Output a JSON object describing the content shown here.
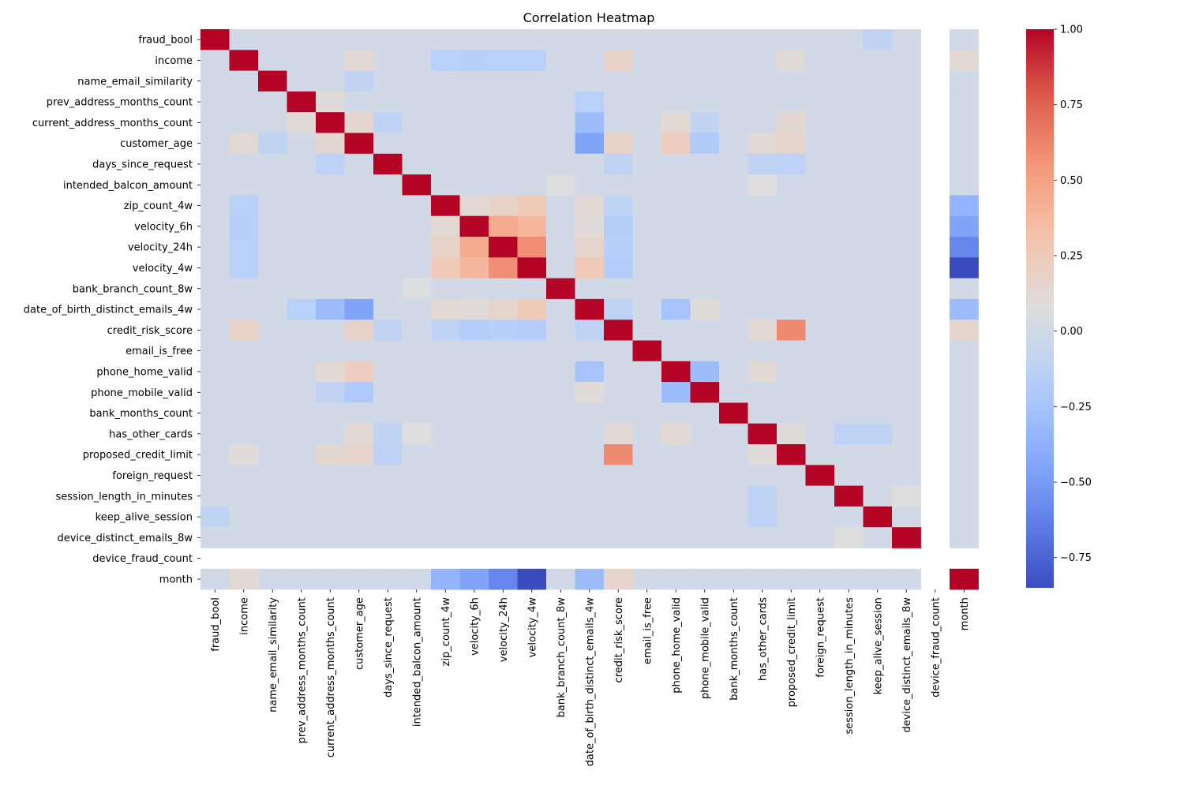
{
  "chart_data": {
    "type": "heatmap",
    "title": "Correlation Heatmap",
    "xlabel": "",
    "ylabel": "",
    "labels": [
      "fraud_bool",
      "income",
      "name_email_similarity",
      "prev_address_months_count",
      "current_address_months_count",
      "customer_age",
      "days_since_request",
      "intended_balcon_amount",
      "zip_count_4w",
      "velocity_6h",
      "velocity_24h",
      "velocity_4w",
      "bank_branch_count_8w",
      "date_of_birth_distinct_emails_4w",
      "credit_risk_score",
      "email_is_free",
      "phone_home_valid",
      "phone_mobile_valid",
      "bank_months_count",
      "has_other_cards",
      "proposed_credit_limit",
      "foreign_request",
      "session_length_in_minutes",
      "keep_alive_session",
      "device_distinct_emails_8w",
      "device_fraud_count",
      "month"
    ],
    "colormap": "coolwarm",
    "vmin": -0.85,
    "vmax": 1.0,
    "colorbar_ticks": [
      1.0,
      0.75,
      0.5,
      0.25,
      0.0,
      -0.25,
      -0.5,
      -0.75
    ],
    "colorbar_tick_labels": [
      "1.00",
      "0.75",
      "0.50",
      "0.25",
      "0.00",
      "−0.25",
      "−0.50",
      "−0.75"
    ],
    "masked_label": "device_fraud_count",
    "pairs": [
      [
        "income",
        "customer_age",
        0.12
      ],
      [
        "income",
        "credit_risk_score",
        0.18
      ],
      [
        "income",
        "proposed_credit_limit",
        0.1
      ],
      [
        "income",
        "zip_count_4w",
        -0.15
      ],
      [
        "income",
        "velocity_6h",
        -0.16
      ],
      [
        "income",
        "velocity_24h",
        -0.15
      ],
      [
        "income",
        "velocity_4w",
        -0.15
      ],
      [
        "income",
        "month",
        0.12
      ],
      [
        "name_email_similarity",
        "customer_age",
        -0.1
      ],
      [
        "prev_address_months_count",
        "current_address_months_count",
        0.1
      ],
      [
        "prev_address_months_count",
        "date_of_birth_distinct_emails_4w",
        -0.15
      ],
      [
        "current_address_months_count",
        "customer_age",
        0.14
      ],
      [
        "current_address_months_count",
        "date_of_birth_distinct_emails_4w",
        -0.3
      ],
      [
        "current_address_months_count",
        "phone_home_valid",
        0.12
      ],
      [
        "current_address_months_count",
        "proposed_credit_limit",
        0.13
      ],
      [
        "current_address_months_count",
        "phone_mobile_valid",
        -0.1
      ],
      [
        "customer_age",
        "date_of_birth_distinct_emails_4w",
        -0.45
      ],
      [
        "customer_age",
        "credit_risk_score",
        0.17
      ],
      [
        "customer_age",
        "phone_home_valid",
        0.22
      ],
      [
        "customer_age",
        "phone_mobile_valid",
        -0.2
      ],
      [
        "customer_age",
        "has_other_cards",
        0.12
      ],
      [
        "customer_age",
        "proposed_credit_limit",
        0.15
      ],
      [
        "days_since_request",
        "current_address_months_count",
        -0.12
      ],
      [
        "days_since_request",
        "credit_risk_score",
        -0.1
      ],
      [
        "days_since_request",
        "has_other_cards",
        -0.1
      ],
      [
        "days_since_request",
        "proposed_credit_limit",
        -0.12
      ],
      [
        "intended_balcon_amount",
        "bank_branch_count_8w",
        0.07
      ],
      [
        "intended_balcon_amount",
        "has_other_cards",
        0.08
      ],
      [
        "zip_count_4w",
        "velocity_6h",
        0.12
      ],
      [
        "zip_count_4w",
        "velocity_24h",
        0.18
      ],
      [
        "zip_count_4w",
        "velocity_4w",
        0.25
      ],
      [
        "zip_count_4w",
        "date_of_birth_distinct_emails_4w",
        0.12
      ],
      [
        "zip_count_4w",
        "credit_risk_score",
        -0.12
      ],
      [
        "zip_count_4w",
        "month",
        -0.35
      ],
      [
        "velocity_6h",
        "velocity_24h",
        0.45
      ],
      [
        "velocity_6h",
        "velocity_4w",
        0.38
      ],
      [
        "velocity_6h",
        "date_of_birth_distinct_emails_4w",
        0.1
      ],
      [
        "velocity_6h",
        "credit_risk_score",
        -0.17
      ],
      [
        "velocity_6h",
        "month",
        -0.45
      ],
      [
        "velocity_24h",
        "velocity_4w",
        0.58
      ],
      [
        "velocity_24h",
        "date_of_birth_distinct_emails_4w",
        0.15
      ],
      [
        "velocity_24h",
        "credit_risk_score",
        -0.16
      ],
      [
        "velocity_24h",
        "month",
        -0.6
      ],
      [
        "velocity_4w",
        "date_of_birth_distinct_emails_4w",
        0.25
      ],
      [
        "velocity_4w",
        "credit_risk_score",
        -0.18
      ],
      [
        "velocity_4w",
        "month",
        -0.85
      ],
      [
        "date_of_birth_distinct_emails_4w",
        "credit_risk_score",
        -0.12
      ],
      [
        "date_of_birth_distinct_emails_4w",
        "phone_home_valid",
        -0.25
      ],
      [
        "date_of_birth_distinct_emails_4w",
        "phone_mobile_valid",
        0.1
      ],
      [
        "date_of_birth_distinct_emails_4w",
        "month",
        -0.3
      ],
      [
        "credit_risk_score",
        "proposed_credit_limit",
        0.6
      ],
      [
        "credit_risk_score",
        "has_other_cards",
        0.12
      ],
      [
        "credit_risk_score",
        "month",
        0.15
      ],
      [
        "phone_home_valid",
        "phone_mobile_valid",
        -0.3
      ],
      [
        "phone_home_valid",
        "has_other_cards",
        0.12
      ],
      [
        "has_other_cards",
        "session_length_in_minutes",
        -0.12
      ],
      [
        "has_other_cards",
        "keep_alive_session",
        -0.12
      ],
      [
        "proposed_credit_limit",
        "has_other_cards",
        0.1
      ],
      [
        "session_length_in_minutes",
        "device_distinct_emails_8w",
        0.08
      ],
      [
        "fraud_bool",
        "keep_alive_session",
        -0.1
      ]
    ],
    "default_value": 0.0
  }
}
